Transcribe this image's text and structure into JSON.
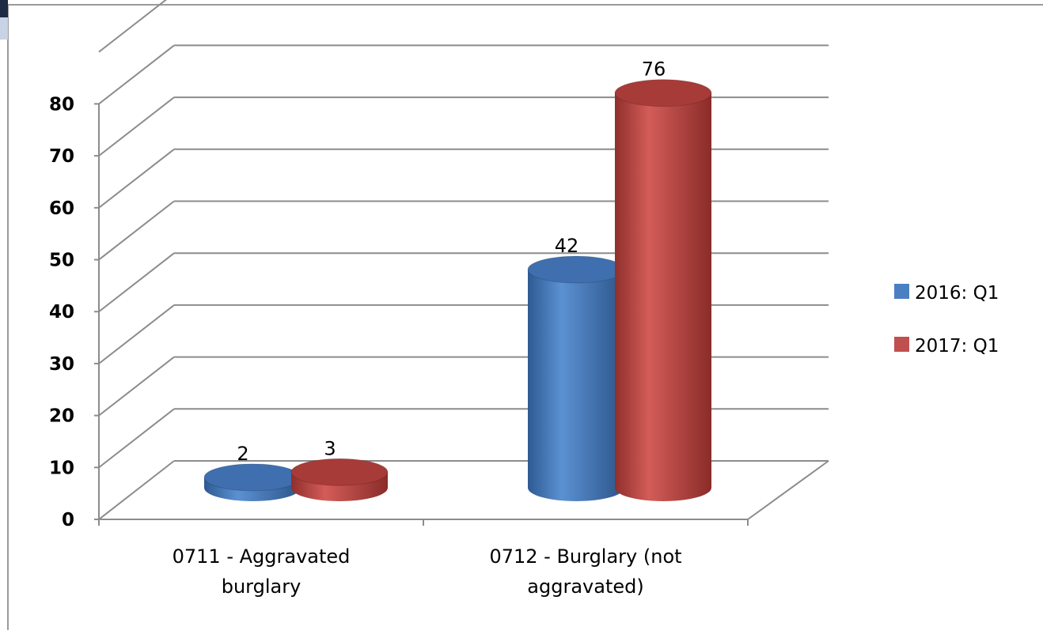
{
  "chart_data": {
    "type": "bar",
    "style": "3d-cylinder",
    "categories": [
      "0711 - Aggravated burglary",
      "0712 - Burglary (not aggravated)"
    ],
    "category_lines": [
      [
        "0711 - Aggravated",
        "burglary"
      ],
      [
        "0712 - Burglary (not",
        "aggravated)"
      ]
    ],
    "series": [
      {
        "name": "2016: Q1",
        "values": [
          2,
          42
        ],
        "color": "#4a7fc1"
      },
      {
        "name": "2017: Q1",
        "values": [
          3,
          76
        ],
        "color": "#c0504d"
      }
    ],
    "ylim": [
      0,
      90
    ],
    "yticks": [
      0,
      10,
      20,
      30,
      40,
      50,
      60,
      70,
      80
    ],
    "legend_position": "right",
    "grid": true,
    "title": "",
    "xlabel": "",
    "ylabel": ""
  }
}
